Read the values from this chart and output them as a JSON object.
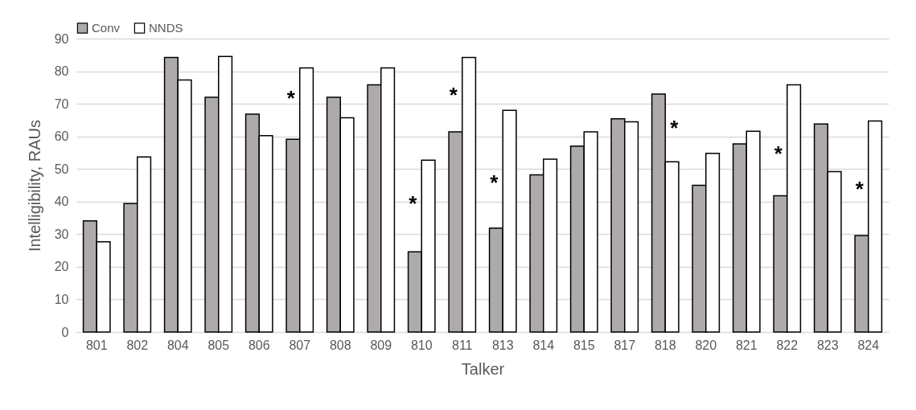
{
  "chart_data": {
    "type": "bar",
    "xlabel": "Talker",
    "ylabel": "Intelligibility, RAUs",
    "categories": [
      "801",
      "802",
      "804",
      "805",
      "806",
      "807",
      "808",
      "809",
      "810",
      "811",
      "813",
      "814",
      "815",
      "817",
      "818",
      "820",
      "821",
      "822",
      "823",
      "824"
    ],
    "series": [
      {
        "name": "Conv",
        "color": "#aeaaaa",
        "values": [
          34.1,
          39.4,
          84.2,
          72,
          66.8,
          59.1,
          72,
          75.8,
          24.6,
          61.4,
          31.9,
          48.2,
          57,
          65.4,
          73,
          45,
          57.7,
          41.8,
          63.8,
          29.6
        ]
      },
      {
        "name": "NNDS",
        "color": "#ffffff",
        "values": [
          27.7,
          53.7,
          77.3,
          84.5,
          60.2,
          81,
          65.7,
          81,
          52.7,
          84.2,
          68,
          53,
          61.4,
          64.5,
          52.2,
          54.8,
          61.6,
          75.8,
          49.2,
          64.7
        ]
      }
    ],
    "ylim": [
      0,
      90
    ],
    "yticks": [
      0,
      10,
      20,
      30,
      40,
      50,
      60,
      70,
      80,
      90
    ],
    "grid": "y",
    "legend": "top",
    "annotations": [
      {
        "text": "*",
        "x": "807",
        "y": 71.4
      },
      {
        "text": "*",
        "x": "810",
        "y": 39.3
      },
      {
        "text": "*",
        "x": "811",
        "y": 72.6
      },
      {
        "text": "*",
        "x": "813",
        "y": 45.6
      },
      {
        "text": "*",
        "x": "818",
        "y": 62.5
      },
      {
        "text": "*",
        "x": "822",
        "y": 54.5
      },
      {
        "text": "*",
        "x": "824",
        "y": 43.7
      }
    ]
  }
}
